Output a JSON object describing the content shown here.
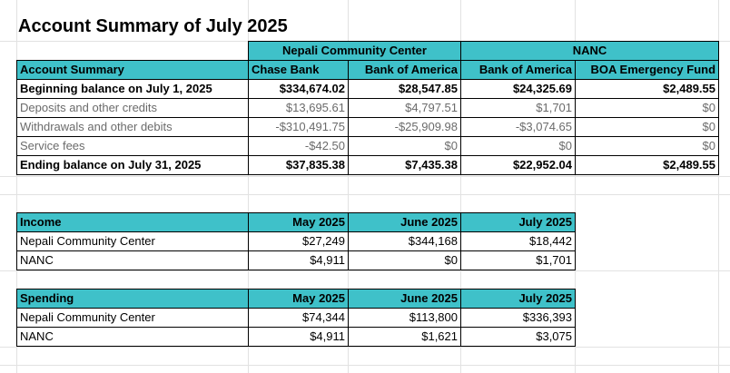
{
  "title": "Account Summary of July 2025",
  "summary": {
    "group_headers": [
      "Nepali Community Center",
      "NANC"
    ],
    "column_headers": [
      "Account Summary",
      "Chase Bank",
      "Bank of America",
      "Bank of America",
      "BOA Emergency Fund"
    ],
    "rows": [
      {
        "label": "Beginning balance on July 1, 2025",
        "values": [
          "$334,674.02",
          "$28,547.85",
          "$24,325.69",
          "$2,489.55"
        ]
      },
      {
        "label": "Deposits and other credits",
        "values": [
          "$13,695.61",
          "$4,797.51",
          "$1,701",
          "$0"
        ]
      },
      {
        "label": "Withdrawals and other debits",
        "values": [
          "-$310,491.75",
          "-$25,909.98",
          "-$3,074.65",
          "$0"
        ]
      },
      {
        "label": "Service fees",
        "values": [
          "-$42.50",
          "$0",
          "$0",
          "$0"
        ]
      },
      {
        "label": "Ending balance on July 31, 2025",
        "values": [
          "$37,835.38",
          "$7,435.38",
          "$22,952.04",
          "$2,489.55"
        ]
      }
    ]
  },
  "income": {
    "headers": [
      "Income",
      "May 2025",
      "June 2025",
      "July 2025"
    ],
    "rows": [
      {
        "label": "Nepali Community Center",
        "values": [
          "$27,249",
          "$344,168",
          "$18,442"
        ]
      },
      {
        "label": "NANC",
        "values": [
          "$4,911",
          "$0",
          "$1,701"
        ]
      }
    ]
  },
  "spending": {
    "headers": [
      "Spending",
      "May 2025",
      "June 2025",
      "July 2025"
    ],
    "rows": [
      {
        "label": "Nepali Community Center",
        "values": [
          "$74,344",
          "$113,800",
          "$336,393"
        ]
      },
      {
        "label": "NANC",
        "values": [
          "$4,911",
          "$1,621",
          "$3,075"
        ]
      }
    ]
  },
  "colors": {
    "header_fill": "#3fc1c9",
    "muted_text": "#6b6b6b"
  }
}
